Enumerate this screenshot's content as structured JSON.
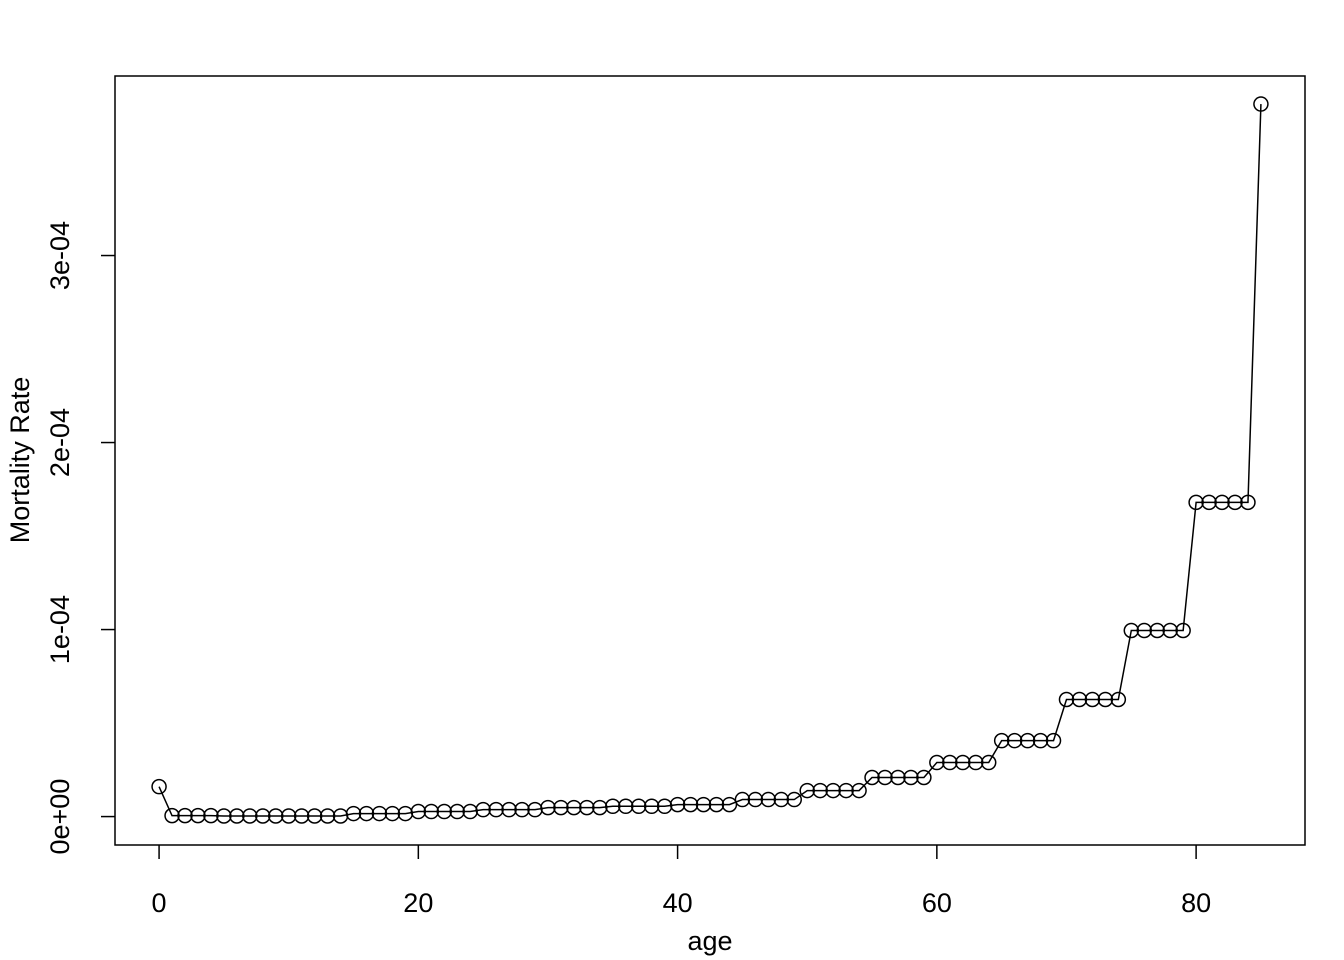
{
  "chart_data": {
    "type": "line",
    "x_label": "age",
    "y_label": "Mortality Rate",
    "x": [
      0,
      1,
      2,
      3,
      4,
      5,
      6,
      7,
      8,
      9,
      10,
      11,
      12,
      13,
      14,
      15,
      16,
      17,
      18,
      19,
      20,
      21,
      22,
      23,
      24,
      25,
      26,
      27,
      28,
      29,
      30,
      31,
      32,
      33,
      34,
      35,
      36,
      37,
      38,
      39,
      40,
      41,
      42,
      43,
      44,
      45,
      46,
      47,
      48,
      49,
      50,
      51,
      52,
      53,
      54,
      55,
      56,
      57,
      58,
      59,
      60,
      61,
      62,
      63,
      64,
      65,
      66,
      67,
      68,
      69,
      70,
      71,
      72,
      73,
      74,
      75,
      76,
      77,
      78,
      79,
      80,
      81,
      82,
      83,
      84,
      85
    ],
    "series": [
      {
        "color": "#000000",
        "values": [
          1.6e-05,
          5e-07,
          5e-07,
          5e-07,
          5e-07,
          3e-07,
          3e-07,
          3e-07,
          3e-07,
          3e-07,
          3e-07,
          3e-07,
          3e-07,
          3e-07,
          3e-07,
          1.6e-06,
          1.6e-06,
          1.6e-06,
          1.6e-06,
          1.6e-06,
          2.7e-06,
          2.7e-06,
          2.7e-06,
          2.7e-06,
          2.7e-06,
          3.7e-06,
          3.7e-06,
          3.7e-06,
          3.7e-06,
          3.7e-06,
          4.8e-06,
          4.8e-06,
          4.8e-06,
          4.8e-06,
          4.8e-06,
          5.5e-06,
          5.5e-06,
          5.5e-06,
          5.5e-06,
          5.5e-06,
          6.4e-06,
          6.4e-06,
          6.4e-06,
          6.4e-06,
          6.4e-06,
          9.1e-06,
          9.1e-06,
          9.1e-06,
          9.1e-06,
          9.1e-06,
          1.39e-05,
          1.39e-05,
          1.39e-05,
          1.39e-05,
          1.39e-05,
          2.09e-05,
          2.09e-05,
          2.09e-05,
          2.09e-05,
          2.09e-05,
          2.89e-05,
          2.89e-05,
          2.89e-05,
          2.89e-05,
          2.89e-05,
          4.06e-05,
          4.06e-05,
          4.06e-05,
          4.06e-05,
          4.06e-05,
          6.26e-05,
          6.26e-05,
          6.26e-05,
          6.26e-05,
          6.26e-05,
          9.95e-05,
          9.95e-05,
          9.95e-05,
          9.95e-05,
          9.95e-05,
          0.000168,
          0.000168,
          0.000168,
          0.000168,
          0.000168,
          0.000381
        ]
      }
    ],
    "xlim": [
      -3.4,
      88.4
    ],
    "ylim": [
      -1.52e-05,
      0.000396
    ],
    "xticks": [
      0,
      20,
      40,
      60,
      80
    ],
    "yticks": [
      {
        "value": 0,
        "label": "0e+00"
      },
      {
        "value": 0.0001,
        "label": "1e-04"
      },
      {
        "value": 0.0002,
        "label": "2e-04"
      },
      {
        "value": 0.0003,
        "label": "3e-04"
      }
    ],
    "grid": false
  }
}
